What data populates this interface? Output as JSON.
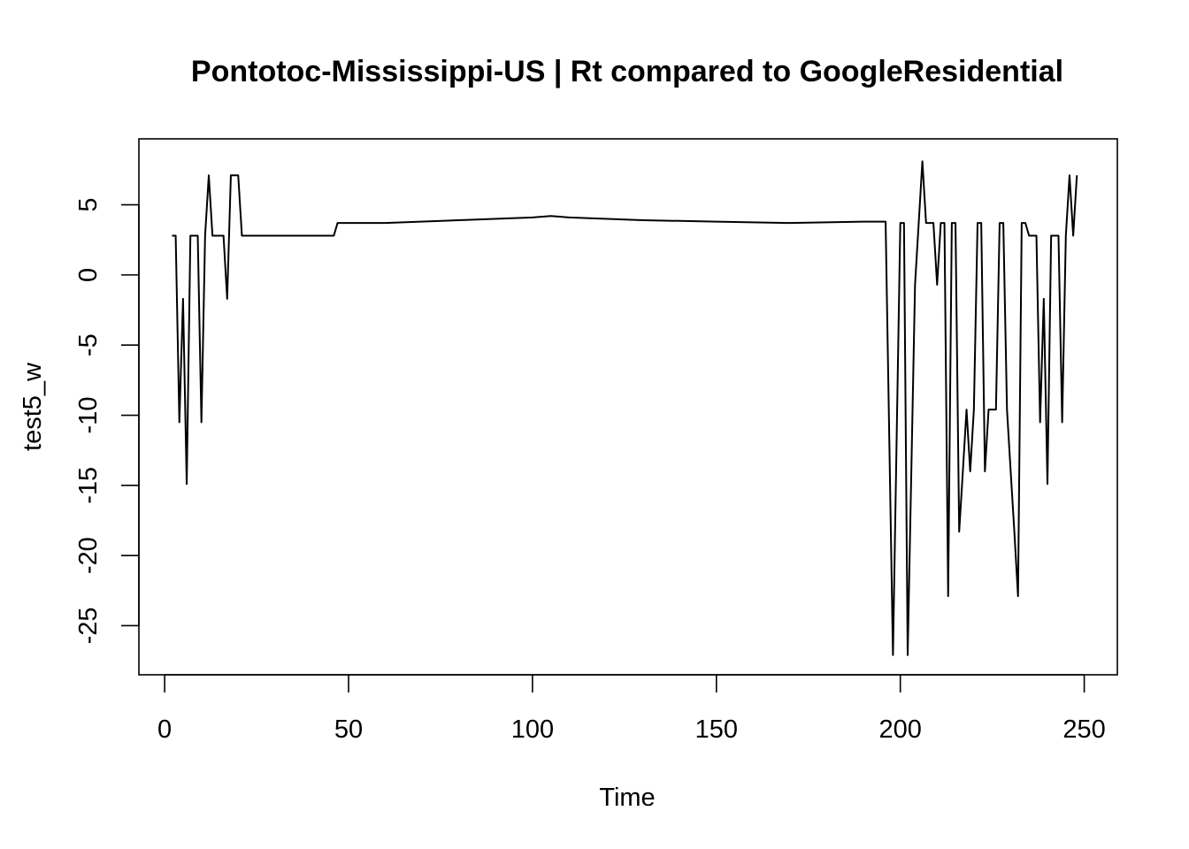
{
  "chart_data": {
    "type": "line",
    "title": "Pontotoc-Mississippi-US | Rt compared to GoogleResidential",
    "xlabel": "Time",
    "ylabel": "test5_w",
    "xlim": [
      -7,
      259
    ],
    "ylim": [
      -28.5,
      9.7
    ],
    "x_ticks": [
      0,
      50,
      100,
      150,
      200,
      250
    ],
    "x_tick_labels": [
      "0",
      "50",
      "100",
      "150",
      "200",
      "250"
    ],
    "y_ticks": [
      -25,
      -20,
      -15,
      -10,
      -5,
      0,
      5
    ],
    "y_tick_labels": [
      "-25",
      "-20",
      "-15",
      "-10",
      "-5",
      "0",
      "5"
    ],
    "grid": false,
    "series": [
      {
        "color": "#000000",
        "x": [
          2,
          3,
          4,
          5,
          6,
          7,
          8,
          9,
          10,
          11,
          12,
          13,
          14,
          15,
          16,
          17,
          18,
          19,
          20,
          21,
          22,
          30,
          40,
          46,
          47,
          60,
          80,
          100,
          105,
          110,
          130,
          150,
          170,
          190,
          196,
          198,
          200,
          201,
          202,
          204,
          206,
          207,
          208,
          209,
          210,
          211,
          212,
          213,
          214,
          215,
          216,
          217,
          218,
          219,
          220,
          221,
          222,
          223,
          224,
          225,
          226,
          227,
          228,
          229,
          230,
          231,
          232,
          233,
          234,
          235,
          236,
          237,
          238,
          239,
          240,
          241,
          242,
          243,
          244,
          245,
          246,
          247,
          248
        ],
        "y": [
          2.8,
          2.8,
          -10.5,
          -1.7,
          -14.9,
          2.8,
          2.8,
          2.8,
          -10.5,
          2.8,
          7.1,
          2.8,
          2.8,
          2.8,
          2.8,
          -1.7,
          7.1,
          7.1,
          7.1,
          2.8,
          2.8,
          2.8,
          2.8,
          2.8,
          3.7,
          3.7,
          3.9,
          4.1,
          4.2,
          4.1,
          3.9,
          3.8,
          3.7,
          3.8,
          3.8,
          -27.1,
          3.7,
          3.7,
          -27.1,
          -0.7,
          8.1,
          3.7,
          3.7,
          3.7,
          -0.7,
          3.7,
          3.7,
          -22.9,
          3.7,
          3.7,
          -18.3,
          -14.0,
          -9.6,
          -14.0,
          -9.6,
          3.7,
          3.7,
          -14.0,
          -9.6,
          -9.6,
          -9.6,
          3.7,
          3.7,
          -9.6,
          -14.0,
          -18.3,
          -22.9,
          3.7,
          3.7,
          2.8,
          2.8,
          2.8,
          -10.5,
          -1.7,
          -14.9,
          2.8,
          2.8,
          2.8,
          -10.5,
          2.8,
          7.1,
          2.8,
          7.1
        ]
      }
    ]
  }
}
